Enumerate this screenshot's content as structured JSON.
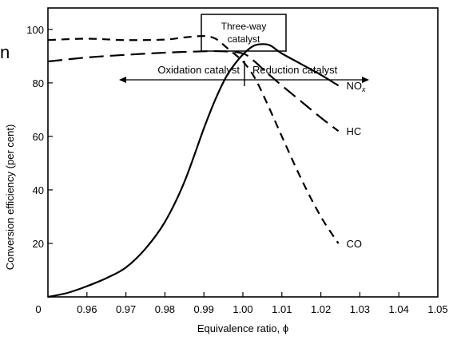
{
  "chart_data": {
    "type": "line",
    "title": "",
    "xlabel": "Equivalence ratio, ϕ",
    "ylabel": "Conversion efficiency (per cent)",
    "xlim": [
      0.95,
      1.05
    ],
    "ylim": [
      0,
      108
    ],
    "x_ticks": [
      "0.96",
      "0.97",
      "0.98",
      "0.99",
      "1.00",
      "1.01",
      "1.02",
      "1.03",
      "1.04",
      "1.05"
    ],
    "x_origin_label": "0",
    "y_ticks": [
      "20",
      "40",
      "60",
      "80",
      "100"
    ],
    "grid": false,
    "legend": "none",
    "series": [
      {
        "name": "NO",
        "name_subscript": "x",
        "dash": "solid",
        "x": [
          0.95,
          0.955,
          0.96,
          0.965,
          0.97,
          0.975,
          0.98,
          0.985,
          0.99,
          0.993,
          0.996,
          0.999,
          1.001,
          1.003,
          1.005,
          1.007,
          1.01,
          1.015,
          1.02,
          1.0245
        ],
        "y": [
          0,
          1.5,
          4,
          7,
          11,
          18,
          28,
          43,
          63,
          74,
          83,
          89,
          92,
          94,
          94.5,
          94,
          91,
          87,
          83,
          79
        ]
      },
      {
        "name": "HC",
        "dash": "long-dash",
        "x": [
          0.95,
          0.96,
          0.97,
          0.98,
          0.99,
          0.995,
          1.0,
          1.003,
          1.006,
          1.01,
          1.015,
          1.02,
          1.0245
        ],
        "y": [
          88,
          89.5,
          90.5,
          91.3,
          91.8,
          91.8,
          91,
          88,
          84,
          79,
          73,
          67,
          62
        ]
      },
      {
        "name": "CO",
        "dash": "short-dash",
        "x": [
          0.95,
          0.96,
          0.97,
          0.98,
          0.985,
          0.99,
          0.993,
          0.996,
          1.0,
          1.003,
          1.006,
          1.01,
          1.015,
          1.02,
          1.0245
        ],
        "y": [
          96,
          96.5,
          96,
          96.2,
          97,
          97.5,
          96.5,
          93,
          88,
          82,
          73,
          60,
          44,
          30,
          20
        ]
      }
    ],
    "annotations": {
      "box_lines": [
        "Three-way",
        "catalyst"
      ],
      "left_region": "Oxidation catalyst",
      "right_region": "Reduction catalyst",
      "cropped_glyph": "n"
    }
  }
}
